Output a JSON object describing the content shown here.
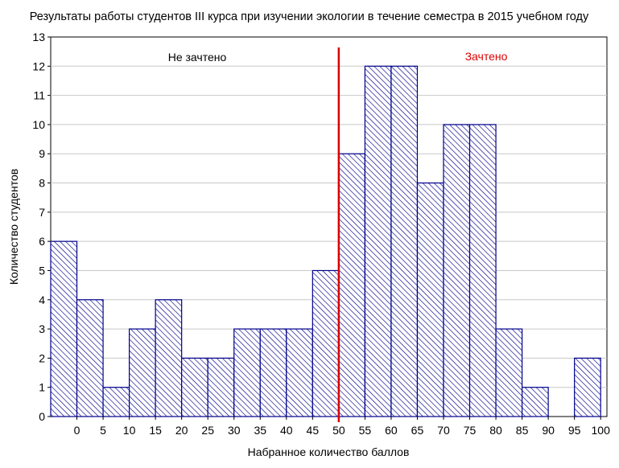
{
  "chart_data": {
    "type": "bar",
    "title": "Результаты работы студентов III курса при изучении экологии в течение семестра в 2015 учебном году",
    "xlabel": "Набранное количество баллов",
    "ylabel": "Количество студентов",
    "ylim": [
      0,
      13
    ],
    "yticks": [
      "0",
      "1",
      "2",
      "3",
      "4",
      "5",
      "6",
      "7",
      "8",
      "9",
      "10",
      "11",
      "12",
      "13"
    ],
    "xticks": [
      "0",
      "5",
      "10",
      "15",
      "20",
      "25",
      "30",
      "35",
      "40",
      "45",
      "50",
      "55",
      "60",
      "65",
      "70",
      "75",
      "80",
      "85",
      "90",
      "95",
      "100"
    ],
    "bins": [
      {
        "from": -5,
        "to": 0,
        "value": 6
      },
      {
        "from": 0,
        "to": 5,
        "value": 4
      },
      {
        "from": 5,
        "to": 10,
        "value": 1
      },
      {
        "from": 10,
        "to": 15,
        "value": 3
      },
      {
        "from": 15,
        "to": 20,
        "value": 4
      },
      {
        "from": 20,
        "to": 25,
        "value": 2
      },
      {
        "from": 25,
        "to": 30,
        "value": 2
      },
      {
        "from": 30,
        "to": 35,
        "value": 3
      },
      {
        "from": 35,
        "to": 40,
        "value": 3
      },
      {
        "from": 40,
        "to": 45,
        "value": 3
      },
      {
        "from": 45,
        "to": 50,
        "value": 5
      },
      {
        "from": 50,
        "to": 55,
        "value": 9
      },
      {
        "from": 55,
        "to": 60,
        "value": 12
      },
      {
        "from": 60,
        "to": 65,
        "value": 12
      },
      {
        "from": 65,
        "to": 70,
        "value": 8
      },
      {
        "from": 70,
        "to": 75,
        "value": 10
      },
      {
        "from": 75,
        "to": 80,
        "value": 10
      },
      {
        "from": 80,
        "to": 85,
        "value": 3
      },
      {
        "from": 85,
        "to": 90,
        "value": 1
      },
      {
        "from": 90,
        "to": 95,
        "value": 0
      },
      {
        "from": 95,
        "to": 100,
        "value": 2
      }
    ],
    "threshold": {
      "x": 50,
      "color": "#dd0000"
    },
    "annotations": [
      {
        "text": "Не зачтено",
        "color": "#000000"
      },
      {
        "text": "Зачтено",
        "color": "#dd0000"
      }
    ],
    "grid": true,
    "colors": {
      "bar_stroke": "#00008b",
      "bar_hatch": "#00008b",
      "grid": "#c8c8c8"
    }
  }
}
